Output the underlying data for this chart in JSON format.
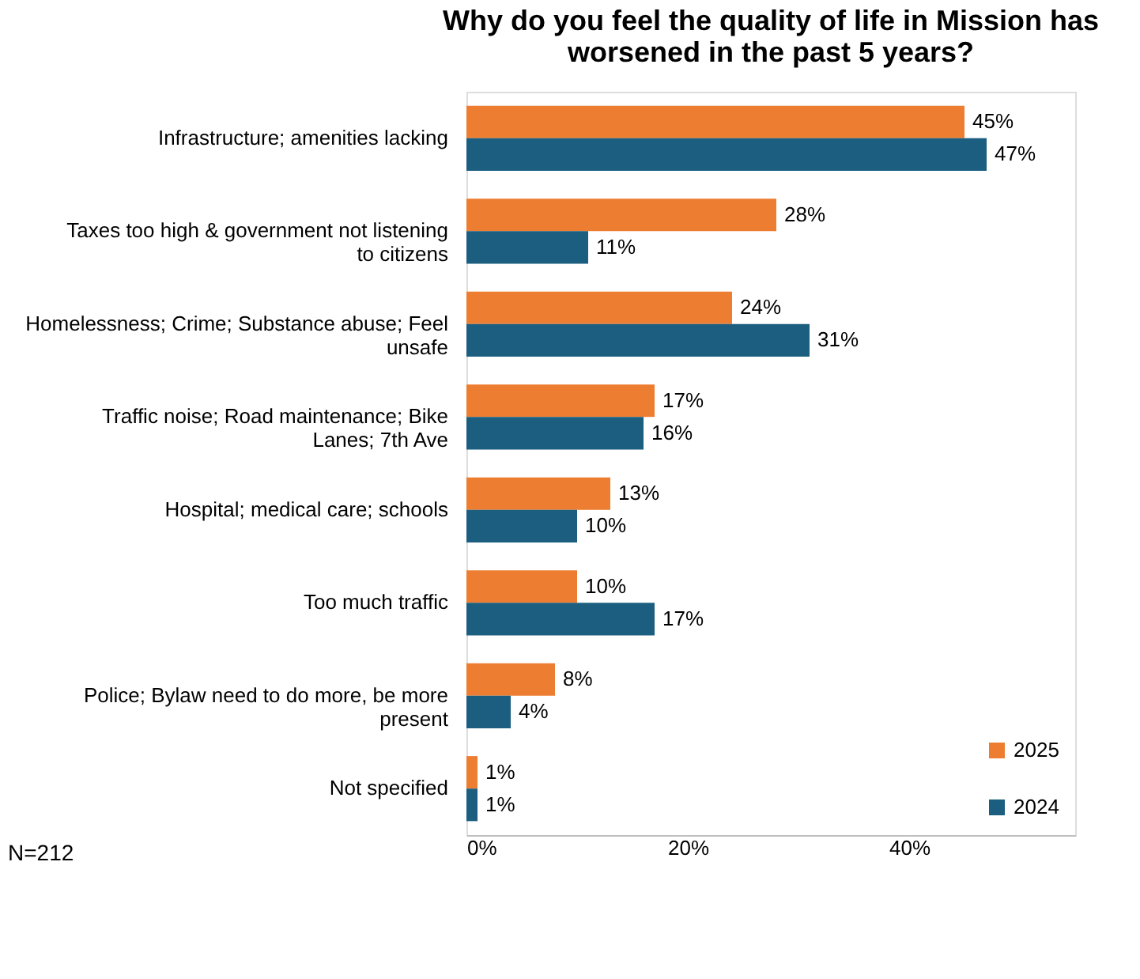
{
  "chart_data": {
    "type": "bar",
    "orientation": "horizontal",
    "title": "Why do you feel the quality of life in Mission has worsened in the past 5 years?",
    "categories": [
      "Infrastructure; amenities lacking",
      "Taxes too high & government not listening to citizens",
      "Homelessness; Crime; Substance abuse; Feel unsafe",
      "Traffic noise; Road maintenance; Bike Lanes; 7th Ave",
      "Hospital; medical care; schools",
      "Too much traffic",
      "Police; Bylaw need to do more, be more present",
      "Not specified"
    ],
    "series": [
      {
        "name": "2025",
        "color": "#ed7d31",
        "values": [
          45,
          28,
          24,
          17,
          13,
          10,
          8,
          1
        ],
        "value_labels": [
          "45%",
          "28%",
          "24%",
          "17%",
          "13%",
          "10%",
          "8%",
          "1%"
        ]
      },
      {
        "name": "2024",
        "color": "#1b5e80",
        "values": [
          47,
          11,
          31,
          16,
          10,
          17,
          4,
          1
        ],
        "value_labels": [
          "47%",
          "11%",
          "31%",
          "16%",
          "10%",
          "17%",
          "4%",
          "1%"
        ]
      }
    ],
    "xlim": [
      0,
      55
    ],
    "xticks": [
      {
        "value": 0,
        "label": "0%"
      },
      {
        "value": 20,
        "label": "20%"
      },
      {
        "value": 40,
        "label": "40%"
      }
    ],
    "legend": "bottom right",
    "grid": false,
    "annotations": [
      "N=212"
    ]
  }
}
